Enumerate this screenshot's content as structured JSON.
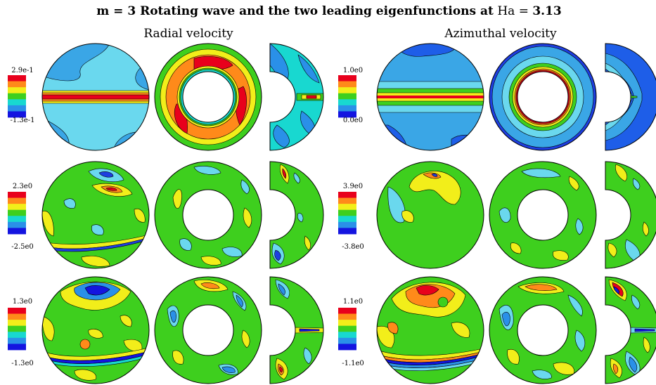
{
  "title": {
    "prefix": "m = 3 Rotating wave and the two leading eigenfunctions at",
    "param": "Ha",
    "equals": "=",
    "value": "3.13"
  },
  "headers": {
    "left": "Radial velocity",
    "right": "Azimuthal velocity"
  },
  "rows": [
    {
      "radial": {
        "max": "2.9e-1",
        "min": "-1.3e-1"
      },
      "azimuthal": {
        "max": "1.0e0",
        "min": "0.0e0"
      }
    },
    {
      "radial": {
        "max": "2.3e0",
        "min": "-2.5e0"
      },
      "azimuthal": {
        "max": "3.9e0",
        "min": "-3.8e0"
      }
    },
    {
      "radial": {
        "max": "1.3e0",
        "min": "-1.3e0"
      },
      "azimuthal": {
        "max": "1.1e0",
        "min": "-1.1e0"
      }
    }
  ],
  "colorbar_colors": [
    "#e8001c",
    "#ff8a1a",
    "#f2ee1a",
    "#3ecf1e",
    "#18d8d0",
    "#2a90e8",
    "#1414e0"
  ]
}
